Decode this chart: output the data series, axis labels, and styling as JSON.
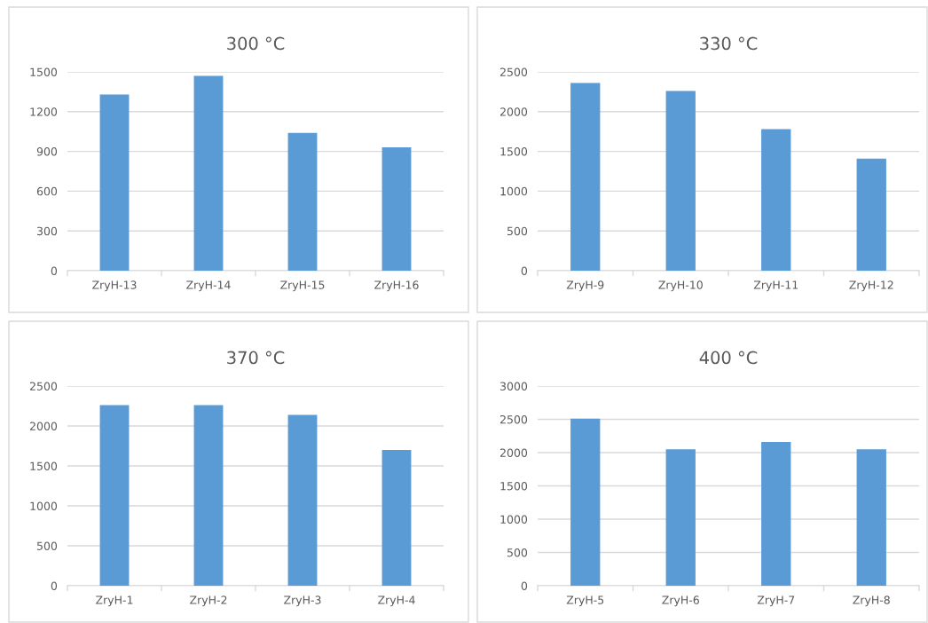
{
  "chart_data": [
    {
      "type": "bar",
      "title": "300 °C",
      "categories": [
        "ZryH-13",
        "ZryH-14",
        "ZryH-15",
        "ZryH-16"
      ],
      "values": [
        1330,
        1470,
        1040,
        930
      ],
      "color": "#5b9bd5",
      "ylim": [
        0,
        1500
      ],
      "yticks": [
        0,
        300,
        600,
        900,
        1200,
        1500
      ],
      "grid": "y"
    },
    {
      "type": "bar",
      "title": "330 °C",
      "categories": [
        "ZryH-9",
        "ZryH-10",
        "ZryH-11",
        "ZryH-12"
      ],
      "values": [
        2360,
        2260,
        1780,
        1410
      ],
      "color": "#5b9bd5",
      "ylim": [
        0,
        2500
      ],
      "yticks": [
        0,
        500,
        1000,
        1500,
        2000,
        2500
      ],
      "grid": "y"
    },
    {
      "type": "bar",
      "title": "370 °C",
      "categories": [
        "ZryH-1",
        "ZryH-2",
        "ZryH-3",
        "ZryH-4"
      ],
      "values": [
        2260,
        2260,
        2140,
        1700
      ],
      "color": "#5b9bd5",
      "ylim": [
        0,
        2500
      ],
      "yticks": [
        0,
        500,
        1000,
        1500,
        2000,
        2500
      ],
      "grid": "y"
    },
    {
      "type": "bar",
      "title": "400 °C",
      "categories": [
        "ZryH-5",
        "ZryH-6",
        "ZryH-7",
        "ZryH-8"
      ],
      "values": [
        2510,
        2050,
        2160,
        2050
      ],
      "color": "#5b9bd5",
      "ylim": [
        0,
        3000
      ],
      "yticks": [
        0,
        500,
        1000,
        1500,
        2000,
        2500,
        3000
      ],
      "grid": "y"
    }
  ]
}
